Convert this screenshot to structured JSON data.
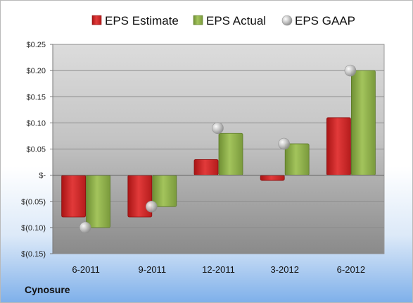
{
  "chart_data": {
    "type": "bar",
    "title": "",
    "xlabel": "",
    "ylabel": "",
    "categories": [
      "6-2011",
      "9-2011",
      "12-2011",
      "3-2012",
      "6-2012"
    ],
    "series": [
      {
        "name": "EPS Estimate",
        "kind": "bar",
        "color": "#d42a2a",
        "values": [
          -0.08,
          -0.08,
          0.03,
          -0.01,
          0.11
        ]
      },
      {
        "name": "EPS Actual",
        "kind": "bar",
        "color": "#8fb24a",
        "values": [
          -0.1,
          -0.06,
          0.08,
          0.06,
          0.2
        ]
      },
      {
        "name": "EPS GAAP",
        "kind": "marker",
        "color": "#b8b8b8",
        "values": [
          -0.1,
          -0.06,
          0.09,
          0.06,
          0.2
        ]
      }
    ],
    "ylim": [
      -0.15,
      0.25
    ],
    "yticks": [
      0.25,
      0.2,
      0.15,
      0.1,
      0.05,
      0,
      -0.05,
      -0.1,
      -0.15
    ],
    "ytick_labels": [
      "$0.25",
      "$0.20",
      "$0.15",
      "$0.10",
      "$0.05",
      "$-",
      "$(0.05)",
      "$(0.10)",
      "$(0.15)"
    ],
    "grid": true,
    "legend_position": "top"
  },
  "footer": {
    "company": "Cynosure"
  }
}
